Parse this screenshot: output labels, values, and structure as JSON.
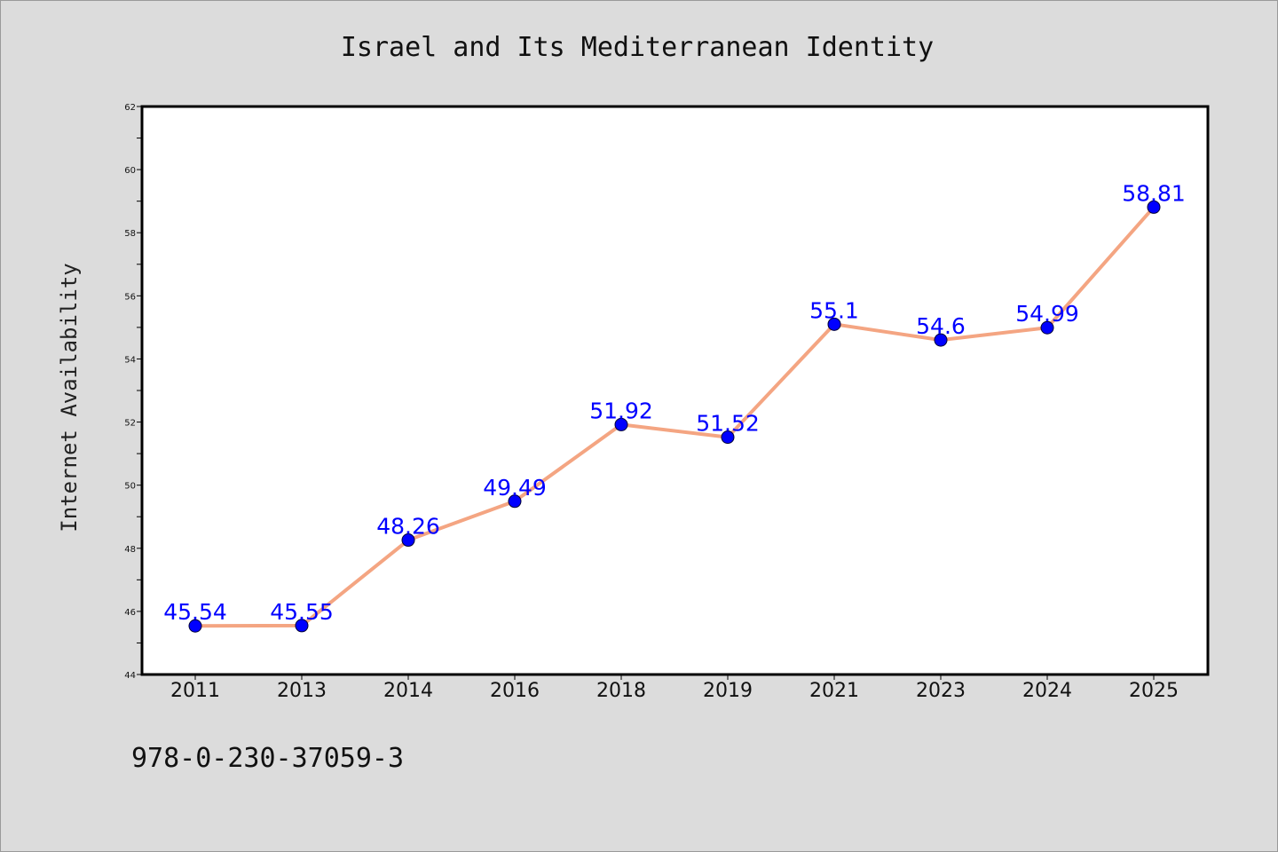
{
  "chart_data": {
    "type": "line",
    "title": "Israel and Its Mediterranean Identity",
    "xlabel": "",
    "ylabel": "Internet Availability",
    "categories": [
      "2011",
      "2013",
      "2014",
      "2016",
      "2018",
      "2019",
      "2021",
      "2023",
      "2024",
      "2025"
    ],
    "series": [
      {
        "values": [
          45.54,
          45.55,
          48.26,
          49.49,
          51.92,
          51.52,
          55.1,
          54.6,
          54.99,
          58.81
        ],
        "data_labels": [
          "45.54",
          "45.55",
          "48.26",
          "49.49",
          "51.92",
          "51.52",
          "55.1",
          "54.6",
          "54.99",
          "58.81"
        ],
        "line_color": "#f4a582",
        "marker_color": "#0000ff"
      }
    ],
    "ylim": [
      44,
      62
    ],
    "yticks": [
      "44",
      "46",
      "48",
      "50",
      "52",
      "54",
      "56",
      "58",
      "60",
      "62"
    ],
    "grid": false,
    "legend": "none"
  },
  "footer": {
    "text": "978-0-230-37059-3"
  },
  "colors": {
    "background": "#dcdcdc",
    "plot_area": "#ffffff",
    "label": "#0000ff"
  }
}
